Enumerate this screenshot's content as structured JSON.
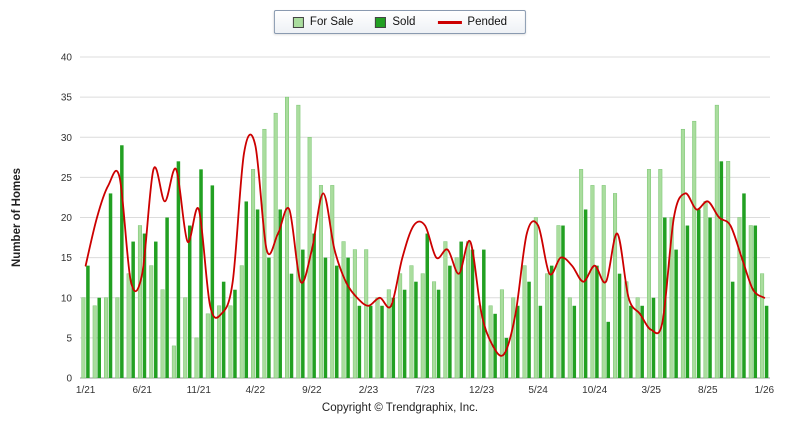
{
  "legend": {
    "items": [
      {
        "label": "For Sale",
        "color": "#aadd9e",
        "type": "square"
      },
      {
        "label": "Sold",
        "color": "#22a022",
        "type": "square"
      },
      {
        "label": "Pended",
        "color": "#cc0000",
        "type": "line"
      }
    ]
  },
  "footer": {
    "copyright": "Copyright © Trendgraphix, Inc."
  },
  "chart_data": {
    "type": "bar",
    "title": "",
    "xlabel": "",
    "ylabel": "Number of Homes",
    "ylim": [
      0,
      40
    ],
    "yticks": [
      0,
      5,
      10,
      15,
      20,
      25,
      30,
      35,
      40
    ],
    "grid": true,
    "legend_position": "top",
    "categories": [
      "1/21",
      "2/21",
      "3/21",
      "4/21",
      "5/21",
      "6/21",
      "7/21",
      "8/21",
      "9/21",
      "10/21",
      "11/21",
      "12/21",
      "1/22",
      "2/22",
      "3/22",
      "4/22",
      "5/22",
      "6/22",
      "7/22",
      "8/22",
      "9/22",
      "10/22",
      "11/22",
      "12/22",
      "1/23",
      "2/23",
      "3/23",
      "4/23",
      "5/23",
      "6/23",
      "7/23",
      "8/23",
      "9/23",
      "10/23",
      "11/23",
      "12/23",
      "1/24",
      "2/24",
      "3/24",
      "4/24",
      "5/24",
      "6/24",
      "7/24",
      "8/24",
      "9/24",
      "10/24",
      "11/24",
      "12/24",
      "1/25",
      "2/25",
      "3/25",
      "4/25",
      "5/25",
      "6/25",
      "7/25",
      "8/25",
      "9/25",
      "10/25",
      "11/25",
      "12/25",
      "1/26"
    ],
    "x_tick_labels": [
      "1/21",
      "6/21",
      "11/21",
      "4/22",
      "9/22",
      "2/23",
      "7/23",
      "12/23",
      "5/24",
      "10/24",
      "3/25",
      "8/25",
      "1/26"
    ],
    "x_tick_indices": [
      0,
      5,
      10,
      15,
      20,
      25,
      30,
      35,
      40,
      45,
      50,
      55,
      60
    ],
    "series": [
      {
        "name": "For Sale",
        "type": "bar",
        "color": "#aadd9e",
        "values": [
          10,
          9,
          10,
          10,
          13,
          19,
          14,
          11,
          4,
          10,
          5,
          8,
          9,
          9,
          14,
          26,
          31,
          33,
          35,
          34,
          30,
          24,
          24,
          17,
          16,
          16,
          10,
          11,
          13,
          14,
          13,
          12,
          17,
          15,
          17,
          9,
          9,
          11,
          10,
          14,
          20,
          13,
          19,
          10,
          26,
          24,
          24,
          23,
          12,
          10,
          26,
          26,
          20,
          31,
          32,
          22,
          34,
          27,
          20,
          19,
          13
        ]
      },
      {
        "name": "Sold",
        "type": "bar",
        "color": "#22a022",
        "values": [
          14,
          10,
          23,
          29,
          17,
          18,
          17,
          20,
          27,
          19,
          26,
          24,
          12,
          11,
          22,
          21,
          15,
          21,
          13,
          16,
          18,
          15,
          14,
          15,
          9,
          9,
          9,
          10,
          11,
          12,
          18,
          11,
          14,
          17,
          16,
          16,
          8,
          5,
          9,
          12,
          9,
          14,
          19,
          9,
          21,
          14,
          7,
          13,
          9,
          9,
          10,
          20,
          16,
          19,
          21,
          20,
          27,
          12,
          23,
          19,
          9
        ]
      },
      {
        "name": "Pended",
        "type": "line",
        "color": "#cc0000",
        "values": [
          14,
          20,
          24,
          25,
          12,
          13,
          26,
          22,
          26,
          17,
          21,
          9,
          8,
          12,
          28,
          29,
          16,
          18,
          21,
          12,
          16,
          23,
          16,
          12,
          10,
          9,
          10,
          9,
          15,
          19,
          19,
          15,
          16,
          13,
          17,
          8,
          4,
          3,
          8,
          18,
          19,
          13,
          15,
          14,
          12,
          14,
          12,
          18,
          10,
          8,
          6,
          7,
          20,
          23,
          21,
          22,
          20,
          19,
          15,
          11,
          10
        ]
      }
    ]
  }
}
